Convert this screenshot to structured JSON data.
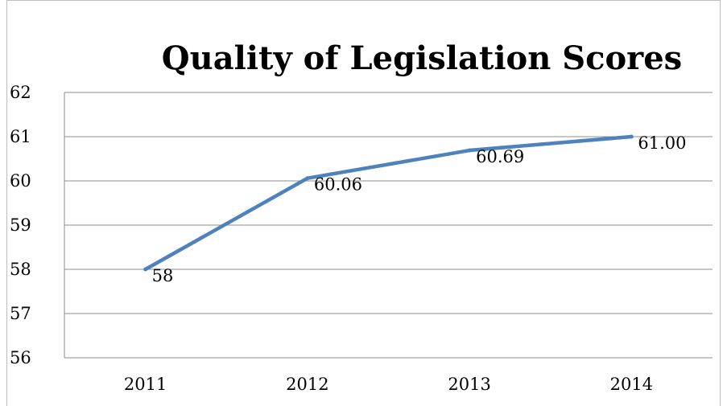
{
  "chart_data": {
    "type": "line",
    "title": "Quality of Legislation Scores",
    "xlabel": "",
    "ylabel": "",
    "categories": [
      "2011",
      "2012",
      "2013",
      "2014"
    ],
    "series": [
      {
        "values": [
          58,
          60.06,
          60.69,
          61.0
        ],
        "labels": [
          "58",
          "60.06",
          "60.69",
          "61.00"
        ],
        "color": "#4f81bd"
      }
    ],
    "ylim": [
      56,
      62
    ],
    "yticks": [
      "56",
      "57",
      "58",
      "59",
      "60",
      "61",
      "62"
    ],
    "grid": true,
    "legend": "none"
  }
}
